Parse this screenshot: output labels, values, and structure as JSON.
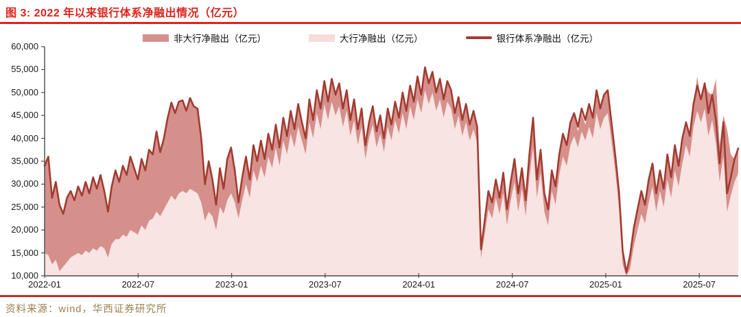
{
  "header": {
    "title": "图 3:  2022 年以来银行体系净融出情况（亿元）"
  },
  "footer": {
    "source": "资料来源：wind，华西证券研究所"
  },
  "colors": {
    "title_red": "#de231c",
    "rule_top": "#de231c",
    "rule_bottom": "#c22f28",
    "line_series": "#a23b30",
    "area_nonbig": "#d5908c",
    "area_big": "#f8e4e2",
    "axis": "#4a4a4a",
    "tick_text": "#1a1a1a",
    "source_text": "#9d7e50"
  },
  "legend": {
    "items": [
      {
        "label": "非大行净融出（亿元）",
        "swatch": "rect",
        "color": "#d5908c"
      },
      {
        "label": "大行净融出（亿元）",
        "swatch": "rect",
        "color": "#f7dcda"
      },
      {
        "label": "银行体系净融出（亿元）",
        "swatch": "line",
        "color": "#a23b30"
      }
    ]
  },
  "chart_data": {
    "type": "area",
    "title": "2022 年以来银行体系净融出情况（亿元）",
    "stacked": true,
    "grid": false,
    "legend_position": "top",
    "ylim": [
      10000,
      60000
    ],
    "y_tick_values": [
      60000,
      55000,
      50000,
      45000,
      40000,
      35000,
      30000,
      25000,
      20000,
      15000,
      10000
    ],
    "y_tick_labels": [
      "60,000",
      "55,000",
      "50,000",
      "45,000",
      "40,000",
      "35,000",
      "30,000",
      "25,000",
      "20,000",
      "15,000",
      "10,000"
    ],
    "x_tick_labels": [
      "2022-01",
      "2022-07",
      "2023-01",
      "2023-07",
      "2024-01",
      "2024-07",
      "2025-01",
      "2025-07"
    ],
    "x_range": [
      "2022-01",
      "2025-09"
    ],
    "sampling": "approximate weekly values read from figure",
    "series": [
      {
        "name": "大行净融出（亿元）",
        "role": "area-base",
        "color": "#f8e4e2",
        "values": [
          15000,
          14500,
          12500,
          13500,
          11000,
          12000,
          13000,
          14000,
          14500,
          15000,
          14500,
          15500,
          15000,
          16000,
          15500,
          16500,
          16000,
          14000,
          17000,
          18000,
          18000,
          19000,
          18500,
          20000,
          19500,
          19000,
          21000,
          20000,
          22000,
          22500,
          24000,
          23000,
          24500,
          26000,
          27500,
          26500,
          28000,
          28500,
          28000,
          29000,
          28500,
          28000,
          26000,
          22000,
          24000,
          23000,
          20000,
          25000,
          23500,
          26500,
          28000,
          26000,
          22500,
          26500,
          30000,
          27000,
          33000,
          30500,
          34000,
          31500,
          36000,
          33500,
          38000,
          34000,
          39500,
          36500,
          41000,
          38000,
          42500,
          39500,
          36500,
          43500,
          40000,
          45500,
          42000,
          47500,
          44000,
          48000,
          45000,
          47000,
          42500,
          46000,
          40500,
          44000,
          38500,
          42500,
          35500,
          40000,
          43000,
          38000,
          41000,
          37000,
          42500,
          39500,
          44000,
          41000,
          45500,
          42000,
          47000,
          44000,
          48500,
          45500,
          50500,
          47500,
          50000,
          46000,
          48500,
          44500,
          48000,
          46500,
          42000,
          45000,
          40500,
          43500,
          39500,
          42000,
          39000,
          13800,
          19000,
          24500,
          22500,
          27000,
          23500,
          28000,
          21000,
          26500,
          30500,
          24000,
          29000,
          23000,
          31500,
          38000,
          27000,
          32500,
          24000,
          21000,
          28500,
          25500,
          32000,
          36000,
          34000,
          38500,
          40500,
          38000,
          41500,
          39500,
          42500,
          40000,
          45500,
          42000,
          44500,
          45500,
          39500,
          33000,
          25000,
          12500,
          8500,
          11500,
          16500,
          20000,
          23500,
          21500,
          26000,
          29500,
          24000,
          28500,
          25000,
          31000,
          27000,
          33000,
          29500,
          34500,
          38500,
          36000,
          42500,
          46000,
          43500,
          46500,
          40500,
          44000,
          39000,
          30500,
          36000,
          24000,
          27500,
          30500,
          32500
        ]
      },
      {
        "name": "非大行净融出（亿元）",
        "role": "area-stack",
        "color": "#d5908c",
        "values": [
          19000,
          21500,
          14500,
          17000,
          14500,
          11500,
          14000,
          14500,
          12000,
          14500,
          13000,
          15000,
          13000,
          15500,
          13500,
          15500,
          12500,
          10000,
          12500,
          15000,
          12500,
          15000,
          13500,
          16000,
          14000,
          12000,
          14500,
          13000,
          15500,
          14000,
          17500,
          14000,
          15500,
          18500,
          20300,
          19000,
          20000,
          19800,
          18000,
          19800,
          18500,
          18500,
          14000,
          8000,
          11000,
          8000,
          5500,
          8500,
          5500,
          9000,
          10000,
          7000,
          3500,
          5000,
          6000,
          4000,
          5500,
          4500,
          5500,
          4000,
          5000,
          4000,
          5000,
          4000,
          5000,
          4000,
          5000,
          4000,
          5000,
          4000,
          3500,
          5000,
          4000,
          5000,
          4500,
          5000,
          4000,
          5000,
          4500,
          5000,
          4000,
          4500,
          3500,
          4500,
          3500,
          4000,
          3000,
          3500,
          4000,
          3500,
          4000,
          3000,
          4000,
          3500,
          4000,
          3500,
          4500,
          4000,
          4500,
          4000,
          5000,
          4000,
          5000,
          4500,
          4500,
          4000,
          4500,
          4000,
          4500,
          4000,
          3500,
          4000,
          3500,
          4000,
          3500,
          4000,
          3500,
          2000,
          3000,
          4000,
          3500,
          4000,
          3500,
          4500,
          3500,
          4000,
          5000,
          4000,
          4500,
          3500,
          5000,
          6500,
          4000,
          5000,
          4000,
          3500,
          4500,
          4000,
          4500,
          5000,
          4500,
          5000,
          4500,
          3500,
          4000,
          3500,
          5000,
          4500,
          5000,
          4500,
          5000,
          5000,
          4000,
          3500,
          3500,
          3000,
          2200,
          3000,
          4000,
          4500,
          5000,
          4000,
          5000,
          5000,
          4000,
          4500,
          4000,
          5500,
          4500,
          5500,
          4500,
          5500,
          5000,
          4500,
          5000,
          7500,
          5000,
          5500,
          9500,
          5500,
          14000,
          8000,
          9000,
          18000,
          9000,
          5000,
          5300
        ]
      },
      {
        "name": "银行体系净融出（亿元）",
        "role": "line",
        "color": "#a23b30",
        "values": [
          34000,
          36000,
          27000,
          30500,
          25500,
          23500,
          27000,
          28500,
          26500,
          29500,
          27500,
          30500,
          28000,
          31500,
          29000,
          32000,
          28500,
          24000,
          29500,
          33000,
          30500,
          34000,
          32000,
          36000,
          33500,
          31000,
          35500,
          33000,
          37500,
          36500,
          41500,
          37000,
          40000,
          44500,
          47800,
          45500,
          48000,
          48300,
          46000,
          48800,
          47000,
          46500,
          40000,
          30000,
          35000,
          31000,
          25500,
          33500,
          29000,
          35500,
          38000,
          33000,
          26000,
          31500,
          36000,
          31000,
          38500,
          35000,
          39500,
          35500,
          41000,
          37500,
          43000,
          38000,
          44500,
          40500,
          46000,
          42000,
          47500,
          43500,
          40000,
          48500,
          44000,
          50500,
          46500,
          52500,
          48000,
          53000,
          49500,
          52000,
          46500,
          50500,
          44000,
          48500,
          42000,
          46500,
          38500,
          43500,
          47000,
          41500,
          45000,
          40000,
          46500,
          43000,
          48000,
          44500,
          50000,
          46000,
          51500,
          48000,
          53500,
          49500,
          55500,
          52000,
          54500,
          50000,
          53000,
          48500,
          52500,
          50500,
          45500,
          49000,
          44000,
          47500,
          43000,
          46000,
          42500,
          15800,
          22000,
          28500,
          26000,
          31000,
          27000,
          32500,
          24500,
          30500,
          35500,
          28000,
          33500,
          26500,
          36500,
          44500,
          31000,
          37500,
          28000,
          24500,
          33000,
          29500,
          36500,
          41000,
          38500,
          43500,
          45500,
          42500,
          46500,
          44000,
          47500,
          44500,
          50500,
          46500,
          49500,
          50500,
          43500,
          36500,
          28500,
          15500,
          10700,
          14500,
          20500,
          24500,
          28500,
          25500,
          31000,
          34500,
          28000,
          33000,
          29000,
          36500,
          31500,
          38500,
          34000,
          40000,
          43500,
          40500,
          47500,
          51500,
          48500,
          52000,
          45500,
          49500,
          44000,
          34500,
          43500,
          28000,
          31500,
          35500,
          37800
        ]
      }
    ]
  }
}
